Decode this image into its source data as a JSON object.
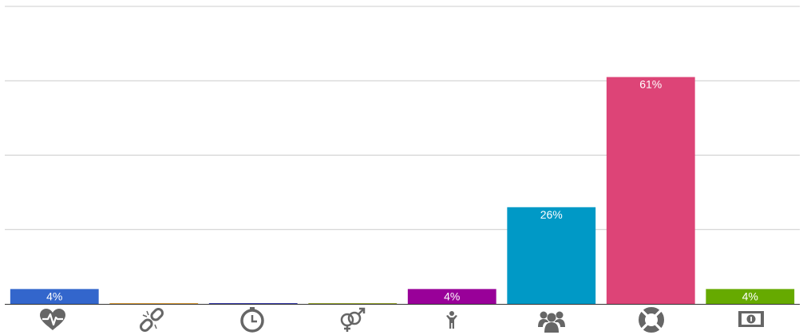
{
  "chart_data": {
    "type": "bar",
    "categories": [
      "health-icon",
      "broken-link-icon",
      "stopwatch-icon",
      "gender-icon",
      "child-icon",
      "group-icon",
      "lifebuoy-icon",
      "money-icon"
    ],
    "values": [
      4,
      0,
      0,
      0,
      4,
      26,
      61,
      4
    ],
    "value_labels": [
      "4%",
      "",
      "",
      "",
      "4%",
      "26%",
      "61%",
      "4%"
    ],
    "colors": [
      "#3366cc",
      "#dc9e3a",
      "#3b3eac",
      "#9aa832",
      "#990099",
      "#0099c6",
      "#dd4477",
      "#66aa00"
    ],
    "ylim": [
      0,
      80
    ],
    "gridlines": [
      0,
      20,
      40,
      60,
      80
    ],
    "grid": true,
    "title": "",
    "xlabel": "",
    "ylabel": ""
  }
}
